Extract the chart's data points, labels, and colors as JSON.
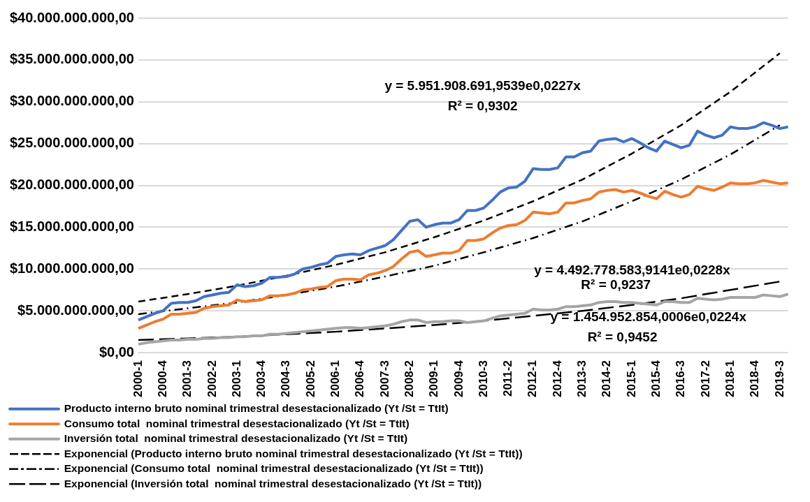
{
  "chart_data": {
    "type": "line",
    "categories": [
      "2000-1",
      null,
      null,
      "2000-4",
      null,
      null,
      "2001-3",
      null,
      null,
      "2002-2",
      null,
      null,
      "2003-1",
      null,
      null,
      "2003-4",
      null,
      null,
      "2004-3",
      null,
      null,
      "2005-2",
      null,
      null,
      "2006-1",
      null,
      null,
      "2006-4",
      null,
      null,
      "2007-3",
      null,
      null,
      "2008-2",
      null,
      null,
      "2009-1",
      null,
      null,
      "2009-4",
      null,
      null,
      "2010-3",
      null,
      null,
      "2011-2",
      null,
      null,
      "2012-1",
      null,
      null,
      "2012-4",
      null,
      null,
      "2013-3",
      null,
      null,
      "2014-2",
      null,
      null,
      "2015-1",
      null,
      null,
      "2015-4",
      null,
      null,
      "2016-3",
      null,
      null,
      "2017-2",
      null,
      null,
      "2018-1",
      null,
      null,
      "2018-4",
      null,
      null,
      "2019-3",
      null
    ],
    "series": [
      {
        "name": "Producto interno bruto nominal trimestral desestacionalizado (Yt /St = TtIt)",
        "color": "#4472c4",
        "line_style": "solid",
        "values": [
          3900000000,
          4300000000,
          4700000000,
          5000000000,
          5900000000,
          6000000000,
          6000000000,
          6200000000,
          6700000000,
          6900000000,
          7100000000,
          7200000000,
          8100000000,
          7900000000,
          8000000000,
          8300000000,
          9000000000,
          9000000000,
          9100000000,
          9400000000,
          10000000000,
          10200000000,
          10500000000,
          10700000000,
          11500000000,
          11700000000,
          11800000000,
          11700000000,
          12200000000,
          12500000000,
          12800000000,
          13500000000,
          14600000000,
          15700000000,
          15900000000,
          15000000000,
          15300000000,
          15500000000,
          15500000000,
          15900000000,
          17000000000,
          17000000000,
          17300000000,
          18200000000,
          19200000000,
          19700000000,
          19800000000,
          20500000000,
          22000000000,
          21900000000,
          21900000000,
          22100000000,
          23400000000,
          23400000000,
          23900000000,
          24100000000,
          25300000000,
          25500000000,
          25600000000,
          25200000000,
          25600000000,
          25100000000,
          24500000000,
          24100000000,
          25300000000,
          24900000000,
          24500000000,
          24800000000,
          26500000000,
          26000000000,
          25700000000,
          26000000000,
          27000000000,
          26800000000,
          26800000000,
          27000000000,
          27500000000,
          27200000000,
          26800000000,
          27000000000
        ]
      },
      {
        "name": "Consumo total  nominal trimestral desestacionalizado (Yt /St = TtIt)",
        "color": "#ed7d31",
        "line_style": "solid",
        "values": [
          2900000000,
          3300000000,
          3700000000,
          4000000000,
          4600000000,
          4600000000,
          4700000000,
          4800000000,
          5300000000,
          5500000000,
          5600000000,
          5700000000,
          6300000000,
          6100000000,
          6200000000,
          6300000000,
          6800000000,
          6800000000,
          6900000000,
          7100000000,
          7500000000,
          7600000000,
          7800000000,
          7900000000,
          8600000000,
          8800000000,
          8800000000,
          8700000000,
          9300000000,
          9500000000,
          9800000000,
          10300000000,
          11200000000,
          12000000000,
          12200000000,
          11500000000,
          11700000000,
          11900000000,
          11900000000,
          12200000000,
          13400000000,
          13400000000,
          13600000000,
          14300000000,
          14900000000,
          15200000000,
          15300000000,
          15800000000,
          16800000000,
          16700000000,
          16600000000,
          16800000000,
          17900000000,
          17900000000,
          18200000000,
          18400000000,
          19200000000,
          19400000000,
          19500000000,
          19200000000,
          19400000000,
          19100000000,
          18700000000,
          18400000000,
          19300000000,
          18900000000,
          18600000000,
          18900000000,
          19900000000,
          19600000000,
          19400000000,
          19800000000,
          20300000000,
          20200000000,
          20200000000,
          20300000000,
          20600000000,
          20400000000,
          20200000000,
          20300000000
        ]
      },
      {
        "name": "Inversión total  nominal trimestral desestacionalizado (Yt /St = TtIt)",
        "color": "#a5a5a5",
        "line_style": "solid",
        "values": [
          1000000000,
          1200000000,
          1300000000,
          1400000000,
          1500000000,
          1500000000,
          1600000000,
          1600000000,
          1700000000,
          1700000000,
          1800000000,
          1800000000,
          1900000000,
          1900000000,
          2000000000,
          2000000000,
          2200000000,
          2200000000,
          2300000000,
          2400000000,
          2500000000,
          2600000000,
          2700000000,
          2800000000,
          2900000000,
          3000000000,
          3000000000,
          2900000000,
          3000000000,
          3100000000,
          3200000000,
          3400000000,
          3700000000,
          3900000000,
          3900000000,
          3600000000,
          3700000000,
          3700000000,
          3800000000,
          3800000000,
          3600000000,
          3700000000,
          3800000000,
          4100000000,
          4400000000,
          4500000000,
          4600000000,
          4700000000,
          5200000000,
          5100000000,
          5100000000,
          5200000000,
          5500000000,
          5500000000,
          5600000000,
          5700000000,
          6000000000,
          6100000000,
          6100000000,
          6000000000,
          6000000000,
          5900000000,
          5800000000,
          5700000000,
          6100000000,
          6100000000,
          6000000000,
          6000000000,
          6500000000,
          6400000000,
          6300000000,
          6400000000,
          6600000000,
          6600000000,
          6600000000,
          6600000000,
          6900000000,
          6800000000,
          6700000000,
          7000000000
        ]
      },
      {
        "name": "Exponencial (Producto interno bruto nominal trimestral desestacionalizado (Yt /St = TtIt))",
        "color": "#000000",
        "line_style": "dashed",
        "x": [
          "2000-1",
          "2001-3",
          "2003-1",
          "2004-3",
          "2006-1",
          "2007-3",
          "2009-1",
          "2010-3",
          "2012-1",
          "2013-3",
          "2015-1",
          "2016-3",
          "2018-1",
          "2019-3"
        ],
        "values": [
          6100000000,
          7000000000,
          8000000000,
          9200000000,
          10500000000,
          12000000000,
          13800000000,
          15800000000,
          18100000000,
          20700000000,
          23800000000,
          27200000000,
          31200000000,
          35800000000
        ]
      },
      {
        "name": "Exponencial (Consumo total  nominal trimestral desestacionalizado (Yt /St = TtIt))",
        "color": "#000000",
        "line_style": "dashdot",
        "x": [
          "2000-1",
          "2001-3",
          "2003-1",
          "2004-3",
          "2006-1",
          "2007-3",
          "2009-1",
          "2010-3",
          "2012-1",
          "2013-3",
          "2015-1",
          "2016-3",
          "2018-1",
          "2019-3"
        ],
        "values": [
          4600000000,
          5300000000,
          6000000000,
          6900000000,
          7900000000,
          9100000000,
          10400000000,
          12000000000,
          13700000000,
          15700000000,
          18100000000,
          20700000000,
          23700000000,
          27200000000
        ]
      },
      {
        "name": "Exponencial (Inversión total  nominal trimestral desestacionalizado (Yt /St = TtIt))",
        "color": "#000000",
        "line_style": "longdash",
        "x": [
          "2000-1",
          "2001-3",
          "2003-1",
          "2004-3",
          "2006-1",
          "2007-3",
          "2009-1",
          "2010-3",
          "2012-1",
          "2013-3",
          "2015-1",
          "2016-3",
          "2018-1",
          "2019-3"
        ],
        "values": [
          1500000000,
          1700000000,
          1900000000,
          2200000000,
          2500000000,
          2900000000,
          3300000000,
          3800000000,
          4400000000,
          5000000000,
          5700000000,
          6500000000,
          7500000000,
          8500000000
        ]
      }
    ],
    "ylim": [
      0,
      40000000000
    ],
    "yticks": [
      {
        "value": 0,
        "label": "$0,00"
      },
      {
        "value": 5000000000,
        "label": "$5.000.000.000,00"
      },
      {
        "value": 10000000000,
        "label": "$10.000.000.000,00"
      },
      {
        "value": 15000000000,
        "label": "$15.000.000.000,00"
      },
      {
        "value": 20000000000,
        "label": "$20.000.000.000,00"
      },
      {
        "value": 25000000000,
        "label": "$25.000.000.000,00"
      },
      {
        "value": 30000000000,
        "label": "$30.000.000.000,00"
      },
      {
        "value": 35000000000,
        "label": "$35.000.000.000,00"
      },
      {
        "value": 40000000000,
        "label": "$40.000.000.000,00"
      }
    ],
    "grid": "y",
    "legend": "bottom",
    "marker": "none",
    "annotations": [
      "y = 5.951.908.691,9539e0,0227x",
      "R² = 0,9302",
      "y = 4.492.778.583,9141e0,0228x",
      "R² = 0,9237",
      "y = 1.454.952.854,0006e0,0224x",
      "R² = 0,9452"
    ]
  }
}
